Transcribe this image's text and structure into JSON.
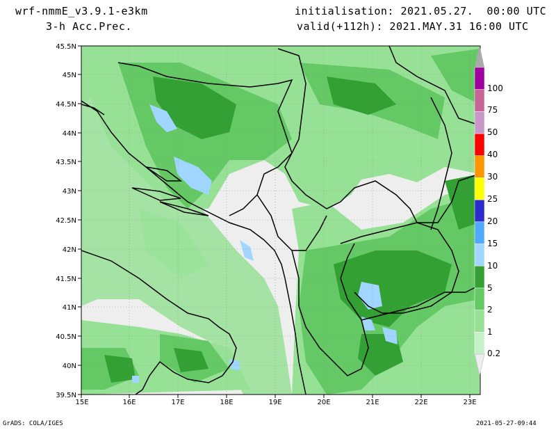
{
  "header": {
    "model": "wrf-nmmE_v3.9.1-e3km",
    "field": "3-h Acc.Prec.",
    "init": "initialisation: 2021.05.27.  00:00 UTC",
    "valid": "valid(+112h): 2021.MAY.31 16:00 UTC"
  },
  "footer": {
    "credit": "GrADS: COLA/IGES",
    "timestamp": "2021-05-27-09:44"
  },
  "axes": {
    "lat_labels": [
      "45.5N",
      "45N",
      "44.5N",
      "44N",
      "43.5N",
      "43N",
      "42.5N",
      "42N",
      "41.5N",
      "41N",
      "40.5N",
      "40N",
      "39.5N"
    ],
    "lon_labels": [
      "15E",
      "16E",
      "17E",
      "18E",
      "19E",
      "20E",
      "21E",
      "22E",
      "23E"
    ]
  },
  "colorbar": {
    "labels": [
      "0.2",
      "1",
      "2",
      "5",
      "10",
      "15",
      "20",
      "25",
      "30",
      "40",
      "50",
      "75",
      "100"
    ],
    "colors": [
      "#c8f0c8",
      "#96e196",
      "#64c864",
      "#32a032",
      "#a0d6ff",
      "#50aaff",
      "#2d2dcd",
      "#ffff00",
      "#ff9600",
      "#ff0000",
      "#c896c8",
      "#c86496",
      "#a000a0",
      "#aaaaaa"
    ]
  },
  "colors": {
    "background": "#eeeeee",
    "precip_light": "#96e196",
    "precip_mid": "#64c864",
    "precip_heavy": "#32a032",
    "water": "#a0d6ff",
    "border": "#000000"
  }
}
